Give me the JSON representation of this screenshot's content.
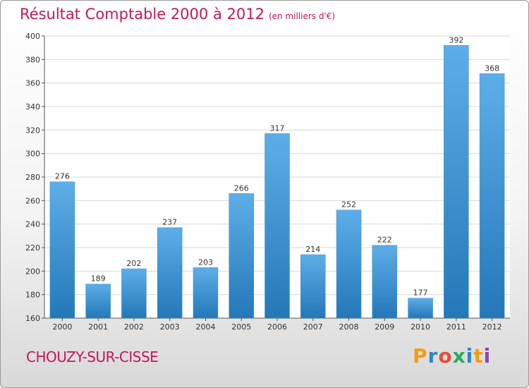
{
  "title": "Résultat Comptable 2000 à 2012",
  "subtitle": "(en milliers d'€)",
  "commune": "CHOUZY-SUR-CISSE",
  "logo": {
    "text": "Proxiti",
    "letter_colors": [
      "#f39c12",
      "#2e86c1",
      "#e74c3c",
      "#27ae60",
      "#2e86c1",
      "#f39c12",
      "#8e44ad"
    ]
  },
  "colors": {
    "title": "#c2185b",
    "bar_top": "#5daee8",
    "bar_bottom": "#2478b8"
  },
  "chart_data": {
    "type": "bar",
    "title": "Résultat Comptable 2000 à 2012",
    "xlabel": "",
    "ylabel": "",
    "categories": [
      "2000",
      "2001",
      "2002",
      "2003",
      "2004",
      "2005",
      "2006",
      "2007",
      "2008",
      "2009",
      "2010",
      "2011",
      "2012"
    ],
    "values": [
      276,
      189,
      202,
      237,
      203,
      266,
      317,
      214,
      252,
      222,
      177,
      392,
      368
    ],
    "ylim": [
      160,
      400
    ],
    "yticks": [
      160,
      180,
      200,
      220,
      240,
      260,
      280,
      300,
      320,
      340,
      360,
      380,
      400
    ],
    "grid": true
  }
}
